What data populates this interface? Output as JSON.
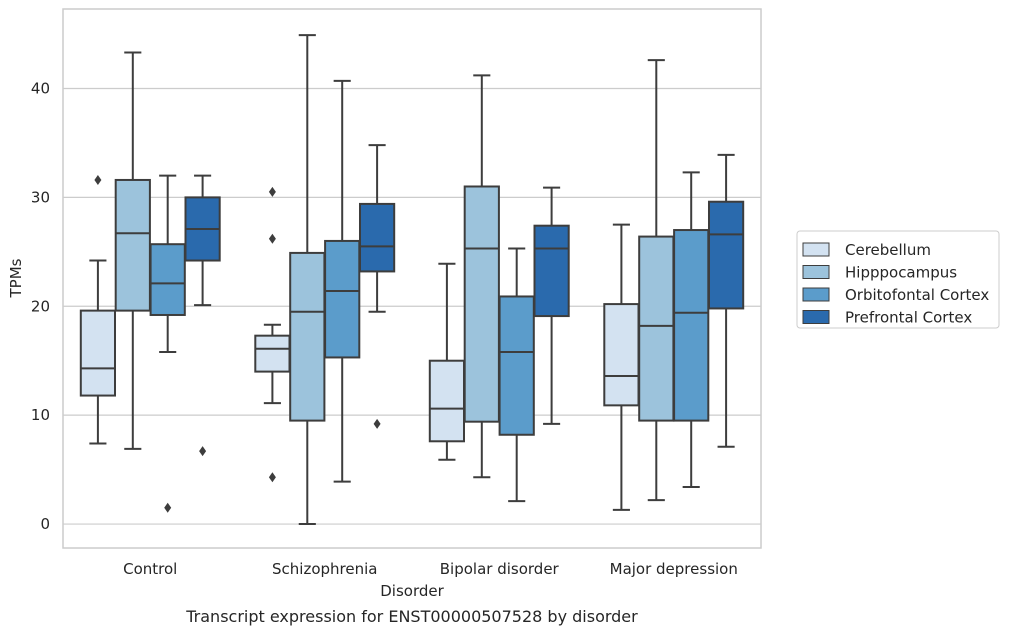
{
  "chart_data": {
    "type": "box",
    "title": "",
    "caption": "Transcript expression for ENST00000507528 by disorder",
    "xlabel": "Disorder",
    "ylabel": "TPMs",
    "ylim": [
      -2.2,
      47.3
    ],
    "yticks": [
      0,
      10,
      20,
      30,
      40
    ],
    "grid": true,
    "legend_position": "right",
    "categories": [
      "Control",
      "Schizophrenia",
      "Bipolar disorder",
      "Major depression"
    ],
    "series": [
      {
        "name": "Cerebellum",
        "color": "#d3e2f1",
        "boxes": [
          {
            "whislo": 7.4,
            "q1": 11.8,
            "med": 14.3,
            "q3": 19.6,
            "whishi": 24.2,
            "fliers": [
              31.6
            ]
          },
          {
            "whislo": 11.1,
            "q1": 14.0,
            "med": 16.1,
            "q3": 17.3,
            "whishi": 18.3,
            "fliers": [
              30.5,
              26.2,
              4.3
            ]
          },
          {
            "whislo": 5.9,
            "q1": 7.6,
            "med": 10.6,
            "q3": 15.0,
            "whishi": 23.9,
            "fliers": []
          },
          {
            "whislo": 1.3,
            "q1": 10.9,
            "med": 13.6,
            "q3": 20.2,
            "whishi": 27.5,
            "fliers": []
          }
        ]
      },
      {
        "name": "Hipppocampus",
        "color": "#9cc3dc",
        "boxes": [
          {
            "whislo": 6.9,
            "q1": 19.6,
            "med": 26.7,
            "q3": 31.6,
            "whishi": 43.3,
            "fliers": []
          },
          {
            "whislo": 0.0,
            "q1": 9.5,
            "med": 19.5,
            "q3": 24.9,
            "whishi": 44.9,
            "fliers": []
          },
          {
            "whislo": 4.3,
            "q1": 9.4,
            "med": 25.3,
            "q3": 31.0,
            "whishi": 41.2,
            "fliers": []
          },
          {
            "whislo": 2.2,
            "q1": 9.5,
            "med": 18.2,
            "q3": 26.4,
            "whishi": 42.6,
            "fliers": []
          }
        ]
      },
      {
        "name": "Orbitofontal Cortex",
        "color": "#5b9ccb",
        "boxes": [
          {
            "whislo": 15.8,
            "q1": 19.2,
            "med": 22.1,
            "q3": 25.7,
            "whishi": 32.0,
            "fliers": [
              1.5
            ]
          },
          {
            "whislo": 3.9,
            "q1": 15.3,
            "med": 21.4,
            "q3": 26.0,
            "whishi": 40.7,
            "fliers": []
          },
          {
            "whislo": 2.1,
            "q1": 8.2,
            "med": 15.8,
            "q3": 20.9,
            "whishi": 25.3,
            "fliers": []
          },
          {
            "whislo": 3.4,
            "q1": 9.5,
            "med": 19.4,
            "q3": 27.0,
            "whishi": 32.3,
            "fliers": []
          }
        ]
      },
      {
        "name": "Prefrontal Cortex",
        "color": "#2a6aad",
        "boxes": [
          {
            "whislo": 20.1,
            "q1": 24.2,
            "med": 27.1,
            "q3": 30.0,
            "whishi": 32.0,
            "fliers": [
              6.7
            ]
          },
          {
            "whislo": 19.5,
            "q1": 23.2,
            "med": 25.5,
            "q3": 29.4,
            "whishi": 34.8,
            "fliers": [
              9.2
            ]
          },
          {
            "whislo": 9.2,
            "q1": 19.1,
            "med": 25.3,
            "q3": 27.4,
            "whishi": 30.9,
            "fliers": []
          },
          {
            "whislo": 7.1,
            "q1": 19.8,
            "med": 26.6,
            "q3": 29.6,
            "whishi": 33.9,
            "fliers": []
          }
        ]
      }
    ]
  }
}
